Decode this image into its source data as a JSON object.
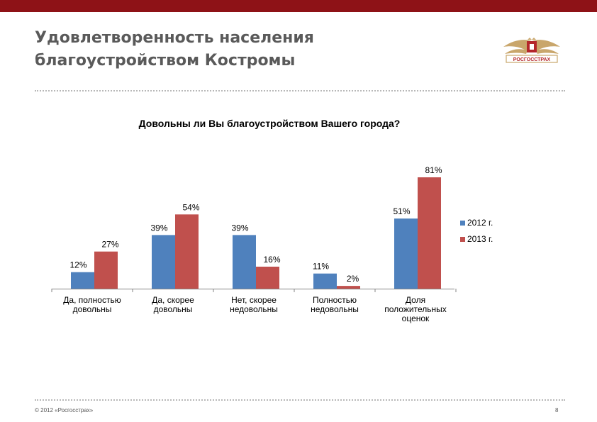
{
  "header": {
    "title": "Удовлетворенность населения\nблагоустройством Костромы",
    "logo_text": "РОСГОССТРАХ",
    "bar_color": "#8e1217"
  },
  "footer": {
    "copyright": "© 2012 «Росгосстрах»",
    "page_number": "8"
  },
  "chart_data": {
    "type": "bar",
    "title": "Довольны ли Вы благоустройством Вашего города?",
    "categories": [
      [
        "Да, полностью",
        "довольны"
      ],
      [
        "Да, скорее",
        "довольны"
      ],
      [
        "Нет, скорее",
        "недовольны"
      ],
      [
        "Полностью",
        "недовольны"
      ],
      [
        "Доля",
        "положительных",
        "оценок"
      ]
    ],
    "series": [
      {
        "name": "2012 г.",
        "color": "#4f81bd",
        "values": [
          12,
          39,
          39,
          11,
          51
        ],
        "labels": [
          "12%",
          "39%",
          "39%",
          "11%",
          "51%"
        ]
      },
      {
        "name": "2013 г.",
        "color": "#c0504d",
        "values": [
          27,
          54,
          16,
          2,
          81
        ],
        "labels": [
          "27%",
          "54%",
          "16%",
          "2%",
          "81%"
        ]
      }
    ],
    "ylim": [
      0,
      81
    ],
    "grid": false,
    "legend_position": "right"
  }
}
